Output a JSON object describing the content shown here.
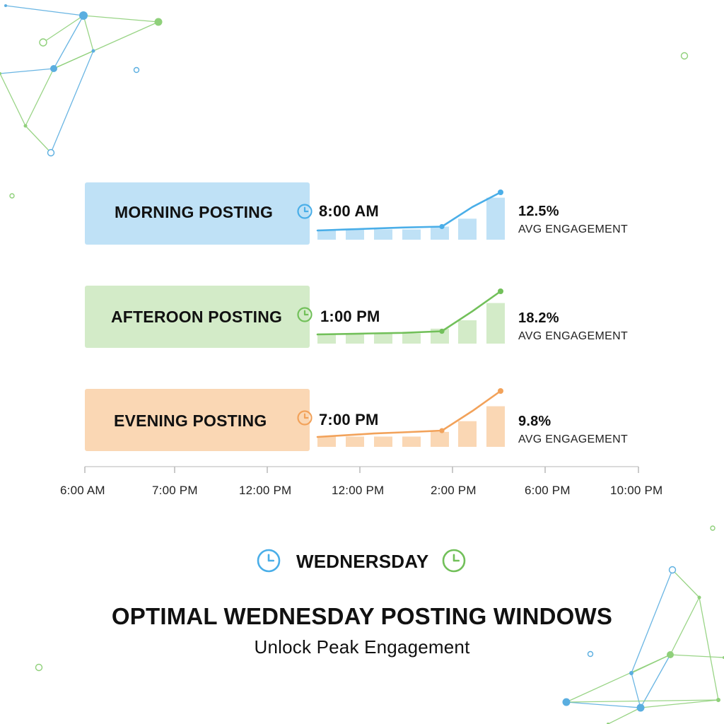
{
  "title": "OPTIMAL WEDNESDAY POSTING WINDOWS",
  "subtitle": "Unlock Peak Engagement",
  "day": {
    "label": "WEDNERSDAY",
    "left_icon": "clock-icon",
    "right_icon": "clock-icon"
  },
  "colors": {
    "blue": "#4aaee8",
    "blue_fill": "#bfe1f6",
    "green": "#72c05a",
    "green_fill": "#d3ebc8",
    "orange": "#f2a25a",
    "orange_fill": "#fad7b4",
    "network_blue": "#5aaee0",
    "network_green": "#8fd07a"
  },
  "chart_data": {
    "type": "bar",
    "x_tick_labels": [
      "6:00 AM",
      "7:00 PM",
      "12:00 PM",
      "12:00 PM",
      "2:00 PM",
      "6:00 PM",
      "10:00 PM"
    ],
    "rows": [
      {
        "name": "MORNING POSTING",
        "time": "8:00 AM",
        "value": "12.5%",
        "metric": "AVG ENGAGEMENT",
        "color": "blue",
        "bar_values": [
          0.22,
          0.22,
          0.22,
          0.22,
          0.28,
          0.45,
          0.9
        ],
        "line_values": [
          0.22,
          0.24,
          0.26,
          0.28,
          0.3,
          0.7,
          1.0
        ]
      },
      {
        "name": "AFTEROON POSTING",
        "time": "1:00 PM",
        "value": "18.2%",
        "metric": "AVG ENGAGEMENT",
        "color": "green",
        "bar_values": [
          0.22,
          0.22,
          0.22,
          0.22,
          0.32,
          0.5,
          0.87
        ],
        "line_values": [
          0.18,
          0.19,
          0.2,
          0.21,
          0.24,
          0.62,
          1.0
        ]
      },
      {
        "name": "EVENING POSTING",
        "time": "7:00 PM",
        "value": "9.8%",
        "metric": "AVG ENGAGEMENT",
        "color": "orange",
        "bar_values": [
          0.22,
          0.22,
          0.22,
          0.22,
          0.32,
          0.55,
          0.87
        ],
        "line_values": [
          0.2,
          0.23,
          0.26,
          0.28,
          0.31,
          0.65,
          1.0
        ]
      }
    ]
  }
}
